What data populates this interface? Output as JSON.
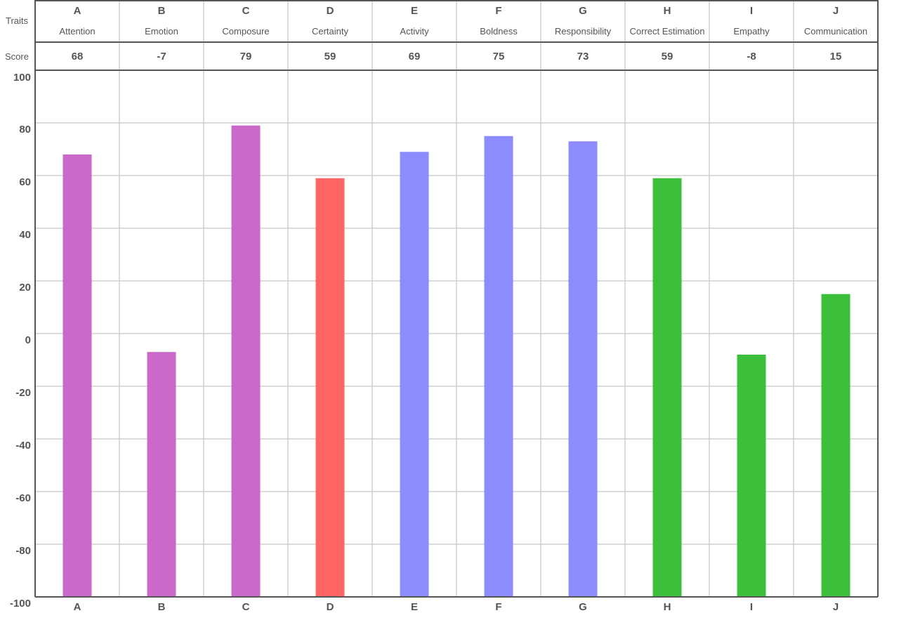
{
  "header": {
    "traits_label": "Traits",
    "score_label": "Score"
  },
  "chart_data": {
    "type": "bar",
    "categories": [
      "A",
      "B",
      "C",
      "D",
      "E",
      "F",
      "G",
      "H",
      "I",
      "J"
    ],
    "trait_names": [
      "Attention",
      "Emotion",
      "Composure",
      "Certainty",
      "Activity",
      "Boldness",
      "Responsibility",
      "Correct Estimation",
      "Empathy",
      "Communication"
    ],
    "values": [
      68,
      -7,
      79,
      59,
      69,
      75,
      73,
      59,
      -8,
      15
    ],
    "bar_colors": [
      "#cb69cb",
      "#cb69cb",
      "#cb69cb",
      "#ff6666",
      "#8c8cff",
      "#8c8cff",
      "#8c8cff",
      "#3cc03c",
      "#3cc03c",
      "#3cc03c"
    ],
    "ylim": [
      -100,
      100
    ],
    "yticks": [
      100,
      80,
      60,
      40,
      20,
      0,
      -20,
      -40,
      -60,
      -80,
      -100
    ],
    "grid": true,
    "title": "",
    "xlabel": "",
    "ylabel": ""
  }
}
